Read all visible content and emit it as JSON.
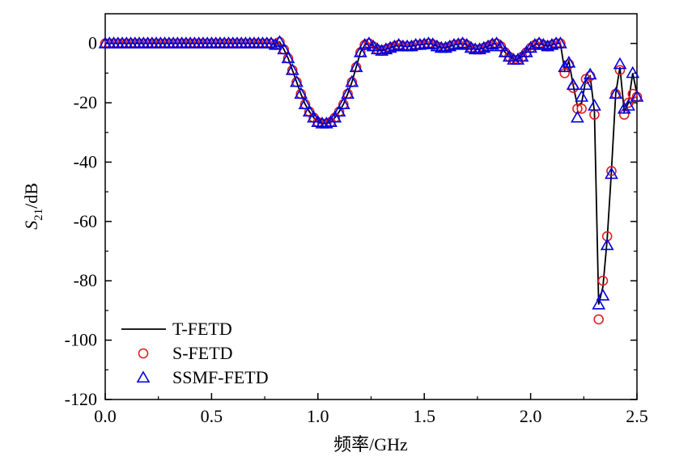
{
  "chart_data": {
    "type": "line",
    "xlabel": "频率/GHz",
    "ylabel": {
      "symbol": "S",
      "subscript": "21",
      "unit": "/dB"
    },
    "xlim": [
      0,
      2.5
    ],
    "ylim": [
      -120,
      10
    ],
    "xticks": [
      {
        "value": 0,
        "label": "0.0"
      },
      0.5,
      {
        "value": 1,
        "label": "1.0"
      },
      1.5,
      {
        "value": 2,
        "label": "2.0"
      },
      2.5
    ],
    "yticks": [
      0,
      -20,
      -40,
      -60,
      -80,
      -100,
      -120
    ],
    "legend": "lower left",
    "x": [
      0,
      0.02,
      0.04,
      0.06,
      0.08,
      0.1,
      0.12,
      0.14,
      0.16,
      0.18,
      0.2,
      0.22,
      0.24,
      0.26,
      0.28,
      0.3,
      0.32,
      0.34,
      0.36,
      0.38,
      0.4,
      0.42,
      0.44,
      0.46,
      0.48,
      0.5,
      0.52,
      0.54,
      0.56,
      0.58,
      0.6,
      0.62,
      0.64,
      0.66,
      0.68,
      0.7,
      0.72,
      0.74,
      0.76,
      0.78,
      0.8,
      0.82,
      0.84,
      0.86,
      0.88,
      0.9,
      0.92,
      0.94,
      0.96,
      0.98,
      1,
      1.02,
      1.04,
      1.06,
      1.08,
      1.1,
      1.12,
      1.14,
      1.16,
      1.18,
      1.2,
      1.22,
      1.24,
      1.26,
      1.28,
      1.3,
      1.32,
      1.34,
      1.36,
      1.38,
      1.4,
      1.42,
      1.44,
      1.46,
      1.48,
      1.5,
      1.52,
      1.54,
      1.56,
      1.58,
      1.6,
      1.62,
      1.64,
      1.66,
      1.68,
      1.7,
      1.72,
      1.74,
      1.76,
      1.78,
      1.8,
      1.82,
      1.84,
      1.86,
      1.88,
      1.9,
      1.92,
      1.94,
      1.96,
      1.98,
      2,
      2.02,
      2.04,
      2.06,
      2.08,
      2.1,
      2.12,
      2.14,
      2.16,
      2.18,
      2.2,
      2.22,
      2.24,
      2.26,
      2.28,
      2.3,
      2.32,
      2.34,
      2.36,
      2.38,
      2.4,
      2.42,
      2.44,
      2.46,
      2.48,
      2.5
    ],
    "series": [
      {
        "name": "T-FETD",
        "color": "#000000",
        "marker": "none",
        "values": [
          0,
          0,
          0,
          0,
          0,
          0,
          0,
          0,
          0,
          0,
          0,
          0,
          0,
          0,
          0,
          0,
          0,
          0,
          0,
          0,
          0,
          0,
          0,
          0,
          0,
          0,
          0,
          0,
          0,
          0,
          0,
          0,
          0,
          0,
          0,
          0,
          0,
          0,
          0,
          0,
          -0.5,
          0.5,
          -2,
          -5,
          -9,
          -13,
          -17,
          -20.5,
          -23,
          -25,
          -26.5,
          -27,
          -27,
          -26.5,
          -25,
          -23,
          -20.5,
          -17,
          -13,
          -8,
          -3,
          -0.5,
          0,
          -1,
          -2,
          -2.5,
          -2,
          -1.5,
          -1,
          -0.5,
          -1,
          -1,
          -1,
          -0.5,
          -0.5,
          -0.3,
          0,
          -0.3,
          -1,
          -1.5,
          -1.5,
          -1,
          -0.5,
          -0.3,
          0,
          -0.5,
          -1.5,
          -2,
          -2,
          -1.5,
          -1,
          -0.3,
          0,
          -1,
          -3,
          -4.5,
          -5.5,
          -5.5,
          -4.5,
          -3,
          -1.5,
          -0.5,
          0,
          -0.5,
          -1,
          -0.5,
          0,
          0,
          -9,
          -6,
          -14,
          -21,
          -20,
          -12,
          -11,
          -23,
          -88,
          -82,
          -66,
          -43,
          -17,
          -8,
          -23,
          -20,
          -10,
          -17
        ]
      },
      {
        "name": "S-FETD",
        "color": "#e02020",
        "marker": "circle",
        "values": [
          0,
          0,
          0,
          0,
          0,
          0,
          0,
          0,
          0,
          0,
          0,
          0,
          0,
          0,
          0,
          0,
          0,
          0,
          0,
          0,
          0,
          0,
          0,
          0,
          0,
          0,
          0,
          0,
          0,
          0,
          0,
          0,
          0,
          0,
          0,
          0,
          0,
          0,
          0,
          0,
          -0.5,
          0.5,
          -2,
          -5,
          -9,
          -13,
          -17,
          -20.5,
          -23,
          -25,
          -26.5,
          -27,
          -27,
          -26.5,
          -25,
          -23,
          -20.5,
          -17,
          -13,
          -8,
          -3,
          -0.5,
          0,
          -1,
          -2,
          -2.5,
          -2,
          -1.5,
          -1,
          -0.5,
          -1,
          -1,
          -1,
          -0.5,
          -0.5,
          -0.3,
          0,
          -0.3,
          -1,
          -1.5,
          -1.5,
          -1,
          -0.5,
          -0.3,
          0,
          -0.5,
          -1.5,
          -2,
          -2,
          -1.5,
          -1,
          -0.3,
          0,
          -1,
          -3,
          -4.5,
          -5.5,
          -5.5,
          -4.5,
          -3,
          -1.5,
          -0.5,
          0,
          -0.5,
          -1,
          -0.5,
          0,
          0,
          -10,
          -7,
          -15,
          -22,
          -22,
          -12,
          -11,
          -24,
          -93,
          -80,
          -65,
          -43,
          -17,
          -9,
          -24,
          -20,
          -17,
          -18
        ]
      },
      {
        "name": "SSMF-FETD",
        "color": "#0000dd",
        "marker": "triangle",
        "values": [
          0,
          0,
          0,
          0,
          0,
          0,
          0,
          0,
          0,
          0,
          0,
          0,
          0,
          0,
          0,
          0,
          0,
          0,
          0,
          0,
          0,
          0,
          0,
          0,
          0,
          0,
          0,
          0,
          0,
          0,
          0,
          0,
          0,
          0,
          0,
          0,
          0,
          0,
          0,
          0,
          -0.5,
          0.5,
          -2,
          -5,
          -9,
          -13,
          -17,
          -20.5,
          -23,
          -25,
          -26.5,
          -27,
          -27,
          -26.5,
          -25,
          -23,
          -20.5,
          -17,
          -13,
          -8,
          -3,
          -0.5,
          0,
          -1,
          -2,
          -2.5,
          -2,
          -1.5,
          -1,
          -0.5,
          -1,
          -1,
          -1,
          -0.5,
          -0.5,
          -0.3,
          0,
          -0.3,
          -1,
          -1.5,
          -1.5,
          -1,
          -0.5,
          -0.3,
          0,
          -0.5,
          -1.5,
          -2,
          -2,
          -1.5,
          -1,
          -0.3,
          0,
          -1,
          -3,
          -4.5,
          -5.5,
          -5.5,
          -4.5,
          -3,
          -1.5,
          -0.5,
          0,
          -0.5,
          -1,
          -0.5,
          0,
          0,
          -8,
          -6.5,
          -14,
          -25,
          -18,
          -14,
          -10.5,
          -21,
          -88,
          -85,
          -68,
          -44,
          -17,
          -7,
          -22,
          -21,
          -10,
          -18
        ]
      }
    ]
  }
}
